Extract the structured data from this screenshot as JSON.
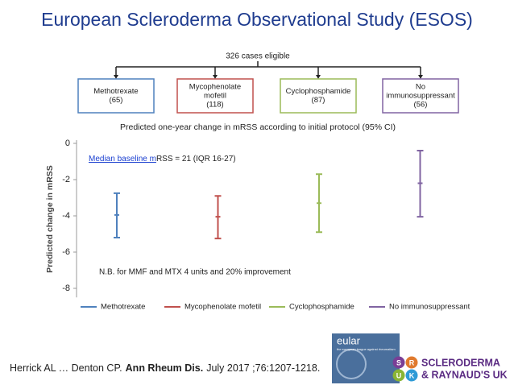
{
  "title": "European Scleroderma Observational Study (ESOS)",
  "flow": {
    "root": "326 cases eligible",
    "nodes": [
      {
        "lines": [
          "Methotrexate",
          "(65)"
        ],
        "color": "#4f81bd"
      },
      {
        "lines": [
          "Mycophenolate",
          "mofetil",
          "(118)"
        ],
        "color": "#c0504d"
      },
      {
        "lines": [
          "Cyclophosphamide",
          "(87)"
        ],
        "color": "#9bbb59"
      },
      {
        "lines": [
          "No",
          "immunosuppressant",
          "(56)"
        ],
        "color": "#8064a2"
      }
    ]
  },
  "chart_data": {
    "type": "errorbar",
    "title": "Predicted one-year change in mRSS according to initial protocol (95% CI)",
    "y_label": "Predicted change in mRSS",
    "ylim": [
      -8.5,
      0
    ],
    "yticks": [
      -8,
      -6,
      -4,
      -2,
      0
    ],
    "series": [
      {
        "name": "Methotrexate",
        "color": "#4f81bd",
        "values": [
          -3.95
        ],
        "lower": [
          -5.2
        ],
        "upper": [
          -2.75
        ]
      },
      {
        "name": "Mycophenolate mofetil",
        "color": "#c0504d",
        "values": [
          -4.05
        ],
        "lower": [
          -5.25
        ],
        "upper": [
          -2.9
        ]
      },
      {
        "name": "Cyclophosphamide",
        "color": "#9bbb59",
        "values": [
          -3.3
        ],
        "lower": [
          -4.9
        ],
        "upper": [
          -1.7
        ]
      },
      {
        "name": "No immunosuppressant",
        "color": "#8064a2",
        "values": [
          -2.2
        ],
        "lower": [
          -4.05
        ],
        "upper": [
          -0.4
        ]
      }
    ],
    "annotations": [
      [
        "Median baseline m",
        "RSS = 21 (IQR 16-27)"
      ],
      [
        "N.B. for MMF and MTX 4 units and 20% improvement"
      ]
    ]
  },
  "citation": {
    "authors": "Herrick AL … Denton CP.",
    "journal": "Ann Rheum Dis.",
    "details": "July 2017 ;76:1207-1218."
  },
  "logos": {
    "eular": "eular",
    "eular_tagline": "the european league against rheumatism",
    "letters": [
      "S",
      "R",
      "U",
      "K"
    ],
    "name": "SCLERODERMA",
    "subname": "& RAYNAUD'S UK"
  }
}
